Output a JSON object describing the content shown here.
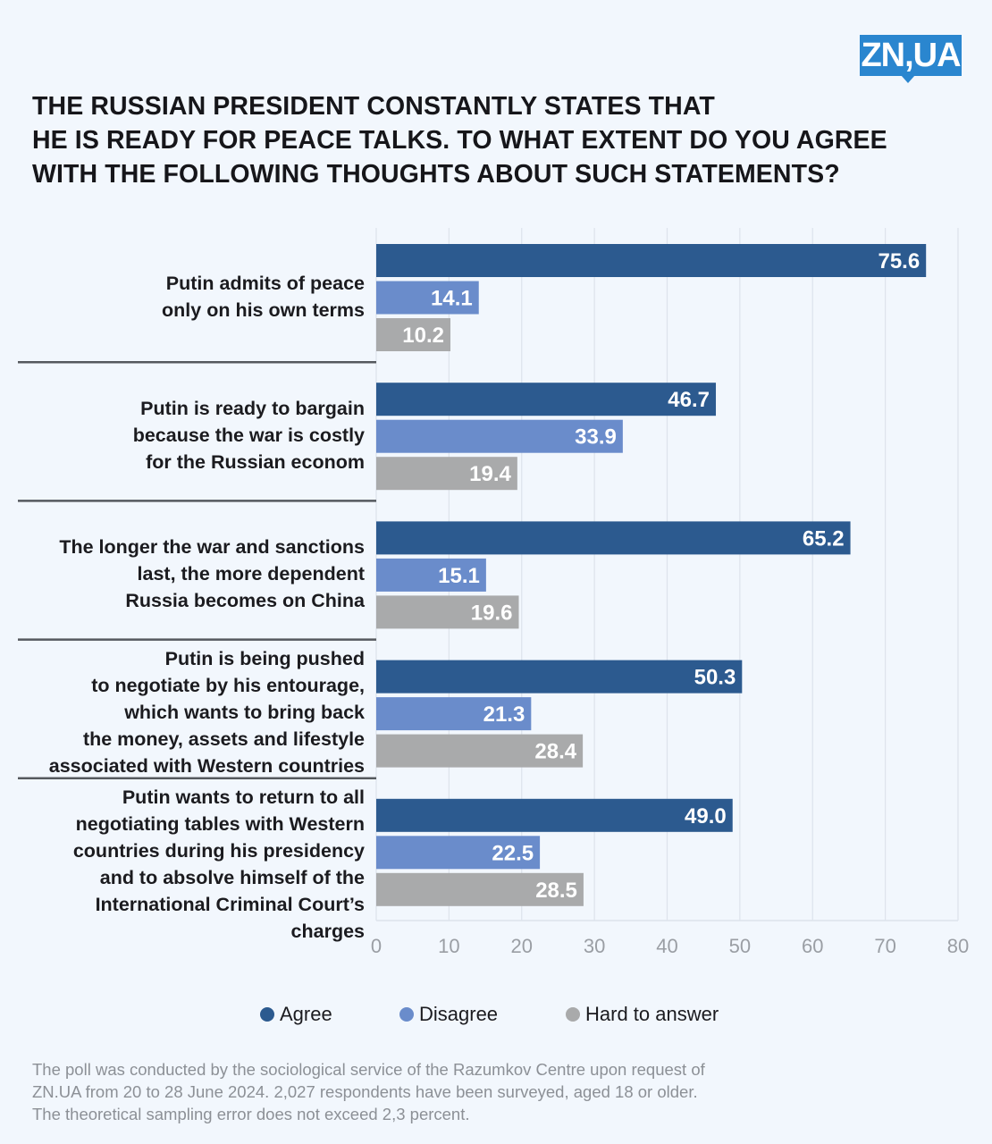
{
  "logo": {
    "text": "ZN,UA",
    "color": "#2a86cf"
  },
  "title_lines": [
    "THE RUSSIAN PRESIDENT CONSTANTLY STATES THAT",
    "HE IS READY FOR PEACE TALKS. TO WHAT EXTENT DO YOU AGREE",
    "WITH THE FOLLOWING THOUGHTS ABOUT SUCH STATEMENTS?"
  ],
  "chart_data": {
    "type": "bar",
    "orientation": "horizontal",
    "title": "THE RUSSIAN PRESIDENT CONSTANTLY STATES THAT HE IS READY FOR PEACE TALKS. TO WHAT EXTENT DO YOU AGREE WITH THE FOLLOWING THOUGHTS ABOUT SUCH STATEMENTS?",
    "xlabel": "",
    "ylabel": "",
    "xlim": [
      0,
      80
    ],
    "xticks": [
      "0",
      "10",
      "20",
      "30",
      "40",
      "50",
      "60",
      "70",
      "80"
    ],
    "grid": true,
    "legend_position": "bottom-center",
    "categories": [
      [
        "Putin admits of peace",
        "only on his own terms"
      ],
      [
        "Putin is ready to bargain",
        "because the war is costly",
        "for the Russian econom"
      ],
      [
        "The longer the war and sanctions",
        "last, the more dependent",
        "Russia becomes on China"
      ],
      [
        "Putin is being pushed",
        "to negotiate by his entourage,",
        "which wants to bring back",
        "the money, assets and lifestyle",
        "associated with Western countries"
      ],
      [
        "Putin wants to return to all",
        "negotiating tables with Western",
        "countries during his presidency",
        "and to absolve himself of the",
        "International Criminal Court’s",
        "charges"
      ]
    ],
    "series": [
      {
        "name": "Agree",
        "color": "#2c5a8f",
        "values": [
          75.6,
          46.7,
          65.2,
          50.3,
          49.0
        ],
        "labels": [
          "75.6",
          "46.7",
          "65.2",
          "50.3",
          "49.0"
        ]
      },
      {
        "name": "Disagree",
        "color": "#6a8ccb",
        "values": [
          14.1,
          33.9,
          15.1,
          21.3,
          22.5
        ],
        "labels": [
          "14.1",
          "33.9",
          "15.1",
          "21.3",
          "22.5"
        ]
      },
      {
        "name": "Hard to answer",
        "color": "#a9aaab",
        "values": [
          10.2,
          19.4,
          19.6,
          28.4,
          28.5
        ],
        "labels": [
          "10.2",
          "19.4",
          "19.6",
          "28.4",
          "28.5"
        ]
      }
    ]
  },
  "note_lines": [
    "The poll was conducted by the sociological service of the Razumkov Centre upon request of",
    "ZN.UA from 20 to 28 June 2024. 2,027 respondents have been surveyed, aged 18 or older.",
    "The theoretical sampling error does not exceed 2,3 percent."
  ]
}
